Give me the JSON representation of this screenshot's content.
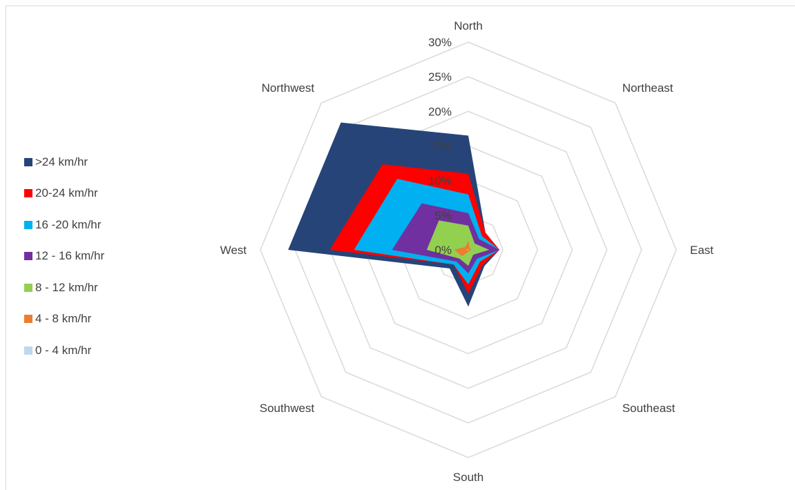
{
  "chart_data": {
    "type": "radar",
    "title": "",
    "categories": [
      "North",
      "Northeast",
      "East",
      "Southeast",
      "South",
      "Southwest",
      "West",
      "Northwest"
    ],
    "rlim": [
      0,
      30
    ],
    "ticks": [
      "0%",
      "5%",
      "10%",
      "15%",
      "20%",
      "25%",
      "30%"
    ],
    "grid": true,
    "legend_position": "left",
    "series": [
      {
        "name": ">24 km/hr",
        "color": "#264478",
        "values": [
          16.5,
          3.5,
          4.5,
          3.3,
          8.2,
          3.8,
          26,
          26
        ]
      },
      {
        "name": "20-24 km/hr",
        "color": "#ff0000",
        "values": [
          11,
          3.5,
          4.5,
          3.0,
          6.3,
          3.0,
          20,
          17.5
        ]
      },
      {
        "name": "16 -20 km/hr",
        "color": "#00b0f0",
        "values": [
          8,
          2.8,
          4.5,
          2.4,
          5.0,
          3.0,
          16.5,
          14.5
        ]
      },
      {
        "name": "12 - 16 km/hr",
        "color": "#7030a0",
        "values": [
          5.3,
          2.2,
          4.5,
          1.8,
          3.4,
          2.4,
          11,
          9.5
        ]
      },
      {
        "name": "8 - 12 km/hr",
        "color": "#92d050",
        "values": [
          3.5,
          1.3,
          3.0,
          1.0,
          2.3,
          1.8,
          6,
          6
        ]
      },
      {
        "name": "4 - 8 km/hr",
        "color": "#ed7d31",
        "values": [
          1.3,
          0.3,
          0.5,
          0.2,
          0.3,
          1.3,
          2.0,
          0.6
        ]
      },
      {
        "name": "0 - 4 km/hr",
        "color": "#bdd7ee",
        "values": [
          0.1,
          0.05,
          0.05,
          0.05,
          0.05,
          0.05,
          0.3,
          0.1
        ]
      }
    ]
  }
}
